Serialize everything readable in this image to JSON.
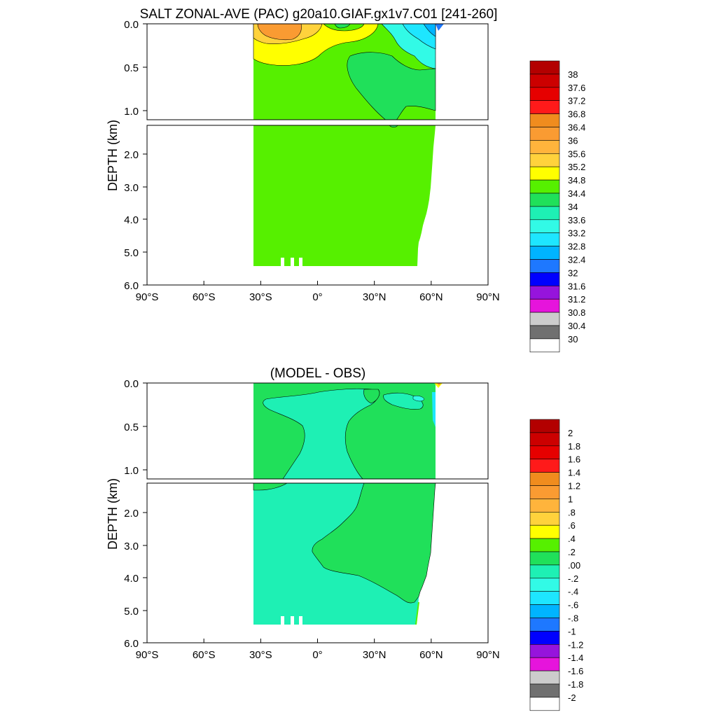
{
  "chart_data": [
    {
      "type": "contour",
      "title": "SALT ZONAL-AVE (PAC) g20a10.GIAF.gx1v7.C01 [241-260]",
      "ylabel": "DEPTH (km)",
      "xlim": [
        -90,
        90
      ],
      "ylim_upper_km": [
        0.0,
        1.1
      ],
      "ylim_lower_km": [
        1.1,
        6.0
      ],
      "x_ticks": [
        "90°S",
        "60°S",
        "30°S",
        "0°",
        "30°N",
        "60°N",
        "90°N"
      ],
      "x_tick_values": [
        -90,
        -60,
        -30,
        0,
        30,
        60,
        90
      ],
      "y_ticks_upper": [
        "0.0",
        "0.5",
        "1.0"
      ],
      "y_ticks_lower": [
        "2.0",
        "3.0",
        "4.0",
        "5.0",
        "6.0"
      ],
      "data_extent": {
        "lat_south": -34,
        "lat_north_surface": 65,
        "lat_north_bottom": 52,
        "max_depth_km": 5.4
      },
      "dominant_deep_value": 34.6,
      "colorbar_labels": [
        "38",
        "37.6",
        "37.2",
        "36.8",
        "36.4",
        "36",
        "35.6",
        "35.2",
        "34.8",
        "34.4",
        "34",
        "33.6",
        "33.2",
        "32.8",
        "32.4",
        "32",
        "31.6",
        "31.2",
        "30.8",
        "30.4",
        "30"
      ],
      "colorbar_colors": [
        "#b30000",
        "#cc0000",
        "#e60000",
        "#ff1a1a",
        "#f08c1e",
        "#fa9b32",
        "#ffb43c",
        "#ffd23c",
        "#ffff00",
        "#56f000",
        "#20e05a",
        "#1ef0b4",
        "#32fae6",
        "#1ee6ff",
        "#00b4ff",
        "#1e78ff",
        "#0000ff",
        "#9614dc",
        "#e614dc",
        "#cccccc",
        "#707070",
        "#ffffff"
      ]
    },
    {
      "type": "contour",
      "title": "(MODEL - OBS)",
      "ylabel": "DEPTH (km)",
      "xlim": [
        -90,
        90
      ],
      "ylim_upper_km": [
        0.0,
        1.1
      ],
      "ylim_lower_km": [
        1.1,
        6.0
      ],
      "x_ticks": [
        "90°S",
        "60°S",
        "30°S",
        "0°",
        "30°N",
        "60°N",
        "90°N"
      ],
      "x_tick_values": [
        -90,
        -60,
        -30,
        0,
        30,
        60,
        90
      ],
      "y_ticks_upper": [
        "0.0",
        "0.5",
        "1.0"
      ],
      "y_ticks_lower": [
        "2.0",
        "3.0",
        "4.0",
        "5.0",
        "6.0"
      ],
      "data_extent": {
        "lat_south": -34,
        "lat_north_surface": 62,
        "lat_north_bottom": 52,
        "max_depth_km": 5.4
      },
      "dominant_deep_value": -0.1,
      "colorbar_labels": [
        "2",
        "1.8",
        "1.6",
        "1.4",
        "1.2",
        "1",
        ".8",
        ".6",
        ".4",
        ".2",
        ".00",
        "-.2",
        "-.4",
        "-.6",
        "-.8",
        "-1",
        "-1.2",
        "-1.4",
        "-1.6",
        "-1.8",
        "-2"
      ],
      "colorbar_colors": [
        "#b30000",
        "#cc0000",
        "#e60000",
        "#ff1a1a",
        "#f08c1e",
        "#fa9b32",
        "#ffb43c",
        "#ffd23c",
        "#ffff00",
        "#56f000",
        "#20e05a",
        "#1ef0b4",
        "#32fae6",
        "#1ee6ff",
        "#00b4ff",
        "#1e78ff",
        "#0000ff",
        "#9614dc",
        "#e614dc",
        "#cccccc",
        "#707070",
        "#ffffff"
      ]
    }
  ],
  "colors": {
    "green": "#56f000",
    "dark_green": "#20e05a",
    "aqua": "#1ef0b4",
    "cyan": "#32fae6",
    "yellow": "#ffff00",
    "light_orange": "#ffd23c",
    "orange": "#fa9b32",
    "sky": "#00b4ff"
  }
}
